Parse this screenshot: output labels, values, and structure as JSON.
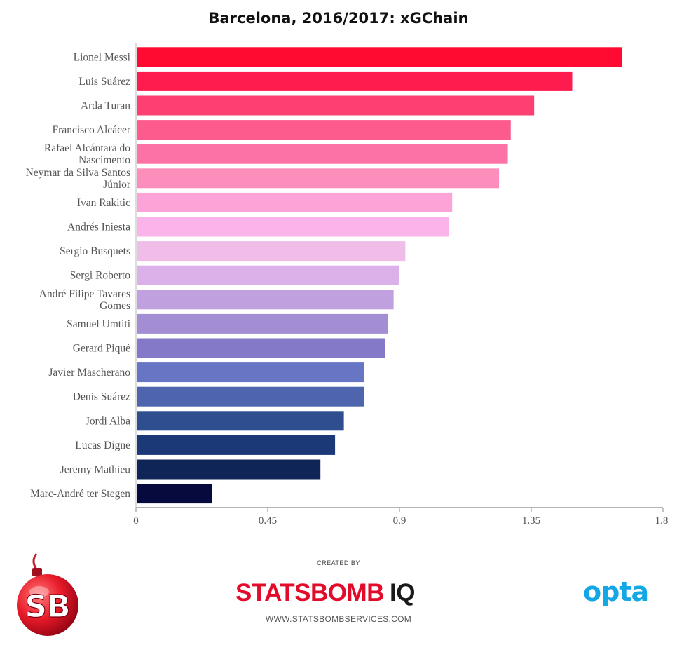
{
  "chart_data": {
    "type": "bar",
    "orientation": "horizontal",
    "title": "Barcelona, 2016/2017: xGChain",
    "categories": [
      "Lionel Messi",
      "Luis Suárez",
      "Arda Turan",
      "Francisco Alcácer",
      "Rafael Alcántara do Nascimento",
      "Neymar da Silva Santos Júnior",
      "Ivan Rakitic",
      "Andrés Iniesta",
      "Sergio Busquets",
      "Sergi Roberto",
      "André Filipe Tavares Gomes",
      "Samuel Umtiti",
      "Gerard Piqué",
      "Javier Mascherano",
      "Denis Suárez",
      "Jordi Alba",
      "Lucas Digne",
      "Jeremy Mathieu",
      "Marc-André ter Stegen"
    ],
    "labels_display": [
      [
        "Lionel Messi"
      ],
      [
        "Luis Suárez"
      ],
      [
        "Arda Turan"
      ],
      [
        "Francisco Alcácer"
      ],
      [
        "Rafael Alcántara do",
        "Nascimento"
      ],
      [
        "Neymar da Silva Santos",
        "Júnior"
      ],
      [
        "Ivan Rakitic"
      ],
      [
        "Andrés Iniesta"
      ],
      [
        "Sergio Busquets"
      ],
      [
        "Sergi Roberto"
      ],
      [
        "André Filipe Tavares",
        "Gomes"
      ],
      [
        "Samuel Umtiti"
      ],
      [
        "Gerard Piqué"
      ],
      [
        "Javier Mascherano"
      ],
      [
        "Denis Suárez"
      ],
      [
        "Jordi Alba"
      ],
      [
        "Lucas Digne"
      ],
      [
        "Jeremy Mathieu"
      ],
      [
        "Marc-André ter Stegen"
      ]
    ],
    "values": [
      1.66,
      1.49,
      1.36,
      1.28,
      1.27,
      1.24,
      1.08,
      1.07,
      0.92,
      0.9,
      0.88,
      0.86,
      0.85,
      0.78,
      0.78,
      0.71,
      0.68,
      0.63,
      0.26
    ],
    "colors": [
      "#ff0a31",
      "#fd1c4d",
      "#fd3f71",
      "#fd5b8d",
      "#fd72a6",
      "#fd8ebb",
      "#fca4d7",
      "#fab4ea",
      "#f0bde9",
      "#dcb0e8",
      "#c1a0df",
      "#a38ed4",
      "#8478c9",
      "#6676c5",
      "#4e65ae",
      "#2e4e90",
      "#1b3977",
      "#102557",
      "#060a3c"
    ],
    "xticks": [
      "0",
      "0.45",
      "0.9",
      "1.35",
      "1.8"
    ],
    "xlim": [
      0,
      1.8
    ],
    "grid": false,
    "legend": "none"
  },
  "footer": {
    "logo_left_text": "SB",
    "created_by": "CREATED BY",
    "brand_name": "STATSBOMB",
    "brand_suffix": "IQ",
    "brand_url": "WWW.STATSBOMBSERVICES.COM",
    "partner_logo": "opta"
  }
}
